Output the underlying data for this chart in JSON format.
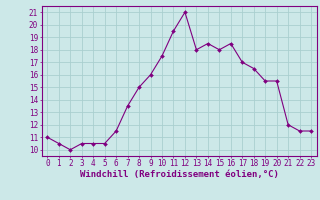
{
  "x": [
    0,
    1,
    2,
    3,
    4,
    5,
    6,
    7,
    8,
    9,
    10,
    11,
    12,
    13,
    14,
    15,
    16,
    17,
    18,
    19,
    20,
    21,
    22,
    23
  ],
  "y": [
    11,
    10.5,
    10,
    10.5,
    10.5,
    10.5,
    11.5,
    13.5,
    15,
    16,
    17.5,
    19.5,
    21,
    18,
    18.5,
    18,
    18.5,
    17,
    16.5,
    15.5,
    15.5,
    12,
    11.5,
    11.5
  ],
  "line_color": "#800080",
  "marker": "D",
  "marker_size": 2.0,
  "marker_color": "#800080",
  "bg_color": "#cce8e8",
  "grid_color": "#aacfcf",
  "xlabel": "Windchill (Refroidissement éolien,°C)",
  "xlabel_color": "#800080",
  "xlabel_fontsize": 6.5,
  "xlim": [
    -0.5,
    23.5
  ],
  "ylim": [
    9.5,
    21.5
  ],
  "yticks": [
    10,
    11,
    12,
    13,
    14,
    15,
    16,
    17,
    18,
    19,
    20,
    21
  ],
  "xticks": [
    0,
    1,
    2,
    3,
    4,
    5,
    6,
    7,
    8,
    9,
    10,
    11,
    12,
    13,
    14,
    15,
    16,
    17,
    18,
    19,
    20,
    21,
    22,
    23
  ],
  "tick_fontsize": 5.5,
  "tick_color": "#800080",
  "spine_color": "#800080"
}
